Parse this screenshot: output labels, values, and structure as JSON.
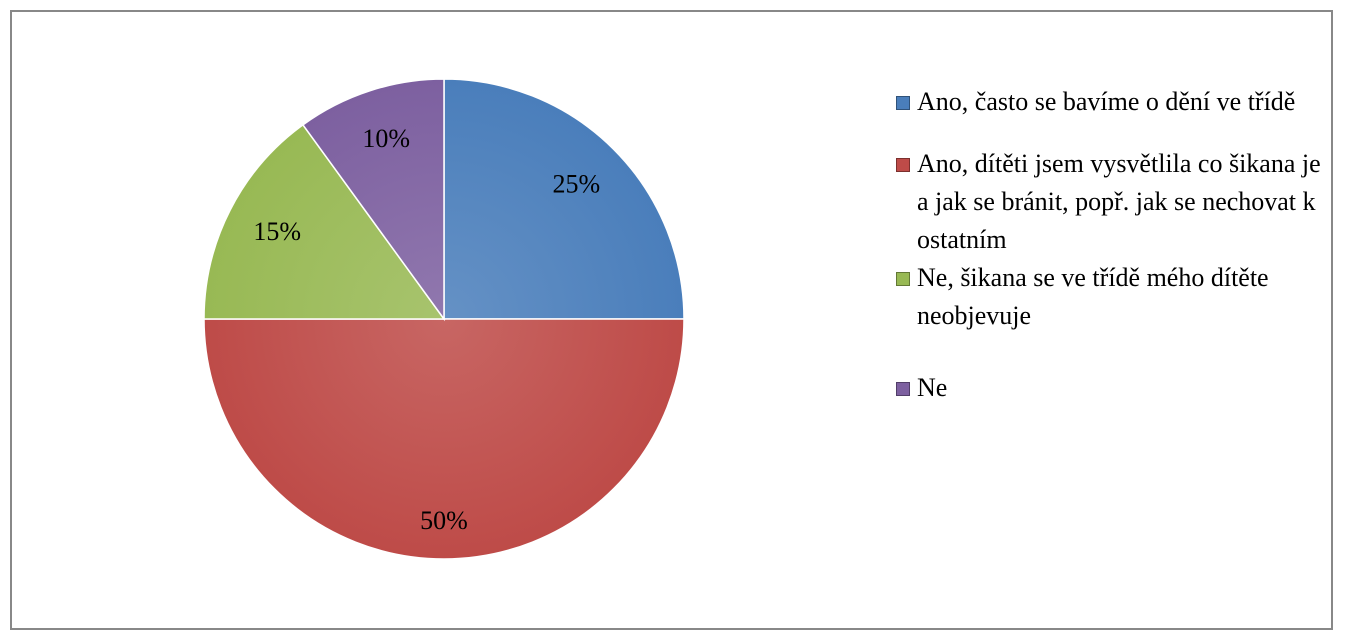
{
  "chart_data": {
    "type": "pie",
    "categories": [
      "Ano, často se bavíme o dění ve třídě",
      "Ano, dítěti jsem vysvětlila co šikana je a jak se bránit, popř. jak se nechovat k ostatním",
      "Ne, šikana se ve třídě mého dítěte neobjevuje",
      "Ne"
    ],
    "values": [
      25,
      50,
      15,
      10
    ],
    "value_labels": [
      "25%",
      "50%",
      "15%",
      "10%"
    ],
    "colors": [
      "#4a7ebb",
      "#be4b48",
      "#98b954",
      "#7d60a0"
    ],
    "legend": "right"
  }
}
